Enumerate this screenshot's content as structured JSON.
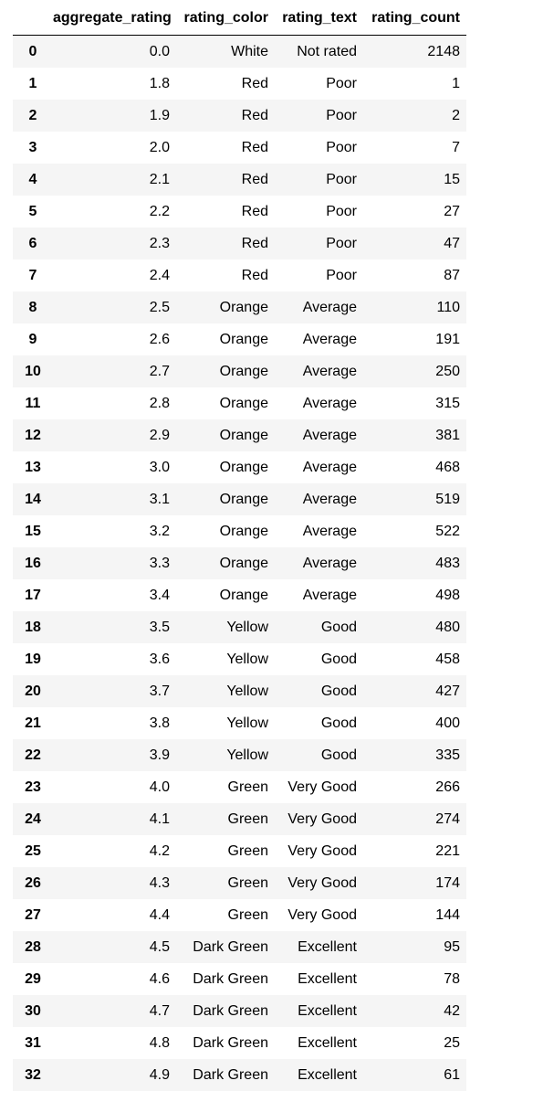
{
  "table": {
    "columns": [
      "",
      "aggregate_rating",
      "rating_color",
      "rating_text",
      "rating_count"
    ],
    "rows": [
      [
        "0",
        "0.0",
        "White",
        "Not rated",
        "2148"
      ],
      [
        "1",
        "1.8",
        "Red",
        "Poor",
        "1"
      ],
      [
        "2",
        "1.9",
        "Red",
        "Poor",
        "2"
      ],
      [
        "3",
        "2.0",
        "Red",
        "Poor",
        "7"
      ],
      [
        "4",
        "2.1",
        "Red",
        "Poor",
        "15"
      ],
      [
        "5",
        "2.2",
        "Red",
        "Poor",
        "27"
      ],
      [
        "6",
        "2.3",
        "Red",
        "Poor",
        "47"
      ],
      [
        "7",
        "2.4",
        "Red",
        "Poor",
        "87"
      ],
      [
        "8",
        "2.5",
        "Orange",
        "Average",
        "110"
      ],
      [
        "9",
        "2.6",
        "Orange",
        "Average",
        "191"
      ],
      [
        "10",
        "2.7",
        "Orange",
        "Average",
        "250"
      ],
      [
        "11",
        "2.8",
        "Orange",
        "Average",
        "315"
      ],
      [
        "12",
        "2.9",
        "Orange",
        "Average",
        "381"
      ],
      [
        "13",
        "3.0",
        "Orange",
        "Average",
        "468"
      ],
      [
        "14",
        "3.1",
        "Orange",
        "Average",
        "519"
      ],
      [
        "15",
        "3.2",
        "Orange",
        "Average",
        "522"
      ],
      [
        "16",
        "3.3",
        "Orange",
        "Average",
        "483"
      ],
      [
        "17",
        "3.4",
        "Orange",
        "Average",
        "498"
      ],
      [
        "18",
        "3.5",
        "Yellow",
        "Good",
        "480"
      ],
      [
        "19",
        "3.6",
        "Yellow",
        "Good",
        "458"
      ],
      [
        "20",
        "3.7",
        "Yellow",
        "Good",
        "427"
      ],
      [
        "21",
        "3.8",
        "Yellow",
        "Good",
        "400"
      ],
      [
        "22",
        "3.9",
        "Yellow",
        "Good",
        "335"
      ],
      [
        "23",
        "4.0",
        "Green",
        "Very Good",
        "266"
      ],
      [
        "24",
        "4.1",
        "Green",
        "Very Good",
        "274"
      ],
      [
        "25",
        "4.2",
        "Green",
        "Very Good",
        "221"
      ],
      [
        "26",
        "4.3",
        "Green",
        "Very Good",
        "174"
      ],
      [
        "27",
        "4.4",
        "Green",
        "Very Good",
        "144"
      ],
      [
        "28",
        "4.5",
        "Dark Green",
        "Excellent",
        "95"
      ],
      [
        "29",
        "4.6",
        "Dark Green",
        "Excellent",
        "78"
      ],
      [
        "30",
        "4.7",
        "Dark Green",
        "Excellent",
        "42"
      ],
      [
        "31",
        "4.8",
        "Dark Green",
        "Excellent",
        "25"
      ],
      [
        "32",
        "4.9",
        "Dark Green",
        "Excellent",
        "61"
      ]
    ]
  },
  "colors": {
    "stripe": "#f5f5f5",
    "header_rule": "#000000"
  }
}
